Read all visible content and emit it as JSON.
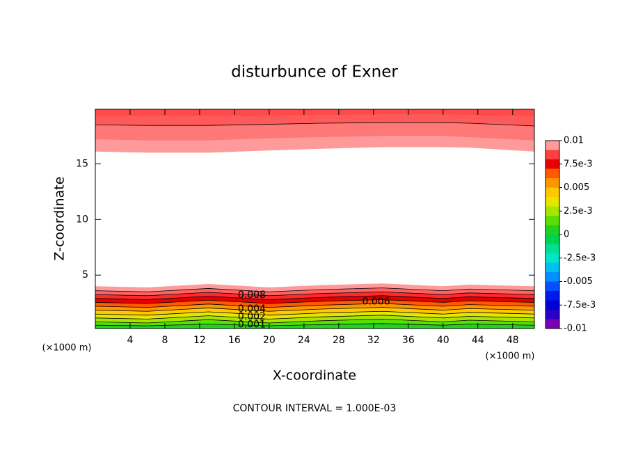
{
  "chart_data": {
    "type": "contour",
    "title": "disturbunce of Exner",
    "x_label": "X-coordinate",
    "y_label": "Z-coordinate",
    "x_unit_labels": [
      "(×1000 m)",
      "(×1000 m)"
    ],
    "footer": "CONTOUR INTERVAL = 1.000E-03",
    "xlim": [
      0,
      50.5
    ],
    "ylim": [
      0.2,
      19.9
    ],
    "xticks": [
      4,
      8,
      12,
      16,
      20,
      24,
      28,
      32,
      36,
      40,
      44,
      48
    ],
    "yticks": [
      5,
      10,
      15
    ],
    "x": [
      0,
      6,
      13,
      20,
      26,
      33,
      40,
      43,
      50.5
    ],
    "lower_bands": [
      {
        "color": "#ff9a9a",
        "line": false,
        "top": [
          4.0,
          3.9,
          4.2,
          3.9,
          4.1,
          4.25,
          4.0,
          4.15,
          4.0
        ]
      },
      {
        "color": "#ff6262",
        "line": true,
        "top": [
          3.6,
          3.5,
          3.8,
          3.5,
          3.7,
          3.85,
          3.6,
          3.75,
          3.6
        ]
      },
      {
        "color": "#ff2a2a",
        "line": true,
        "top": [
          3.25,
          3.15,
          3.45,
          3.15,
          3.35,
          3.5,
          3.25,
          3.4,
          3.25
        ]
      },
      {
        "color": "#e80000",
        "line": true,
        "top": [
          2.9,
          2.8,
          3.1,
          2.8,
          3.0,
          3.15,
          2.9,
          3.05,
          2.9
        ]
      },
      {
        "color": "#ff5a00",
        "line": true,
        "top": [
          2.55,
          2.45,
          2.75,
          2.45,
          2.65,
          2.8,
          2.55,
          2.7,
          2.55
        ]
      },
      {
        "color": "#ff9600",
        "line": true,
        "top": [
          2.2,
          2.1,
          2.4,
          2.1,
          2.3,
          2.45,
          2.2,
          2.35,
          2.2
        ]
      },
      {
        "color": "#ffc800",
        "line": true,
        "top": [
          1.85,
          1.75,
          2.05,
          1.75,
          1.95,
          2.1,
          1.85,
          2.0,
          1.85
        ]
      },
      {
        "color": "#e6e600",
        "line": true,
        "top": [
          1.5,
          1.4,
          1.7,
          1.4,
          1.6,
          1.75,
          1.5,
          1.65,
          1.5
        ]
      },
      {
        "color": "#a8e600",
        "line": true,
        "top": [
          1.15,
          1.05,
          1.35,
          1.05,
          1.25,
          1.4,
          1.15,
          1.3,
          1.15
        ]
      },
      {
        "color": "#5ae000",
        "line": true,
        "top": [
          0.8,
          0.7,
          1.0,
          0.7,
          0.9,
          1.05,
          0.8,
          0.95,
          0.8
        ]
      },
      {
        "color": "#22d222",
        "line": true,
        "top": [
          0.5,
          0.45,
          0.6,
          0.45,
          0.55,
          0.65,
          0.5,
          0.6,
          0.5
        ]
      }
    ],
    "upper_bands": [
      {
        "color": "#ff9a9a",
        "line": false,
        "bottom": [
          16.1,
          16.0,
          16.0,
          16.2,
          16.35,
          16.5,
          16.5,
          16.45,
          16.1
        ]
      },
      {
        "color": "#ff7878",
        "line": false,
        "bottom": [
          17.2,
          17.1,
          17.1,
          17.3,
          17.4,
          17.5,
          17.5,
          17.4,
          17.1
        ]
      },
      {
        "color": "#ff5a5a",
        "line": true,
        "bottom": [
          18.5,
          18.45,
          18.45,
          18.55,
          18.65,
          18.7,
          18.7,
          18.65,
          18.4
        ]
      },
      {
        "color": "#ff4a4a",
        "line": false,
        "bottom": [
          19.3,
          19.3,
          19.3,
          19.35,
          19.4,
          19.45,
          19.45,
          19.4,
          19.3
        ]
      }
    ],
    "contour_labels": [
      {
        "text": "0.008",
        "x": 18,
        "z": 3.2
      },
      {
        "text": "0.006",
        "x": 32.3,
        "z": 2.6
      },
      {
        "text": "0.004",
        "x": 18,
        "z": 1.95
      },
      {
        "text": "0.002",
        "x": 18,
        "z": 1.25
      },
      {
        "text": "0.001",
        "x": 18,
        "z": 0.55
      }
    ],
    "colorbar": {
      "lim": [
        -0.01,
        0.01
      ],
      "ticks": [
        {
          "value": 0.01,
          "label": "0.01"
        },
        {
          "value": 0.0075,
          "label": "7.5e-3"
        },
        {
          "value": 0.005,
          "label": "0.005"
        },
        {
          "value": 0.0025,
          "label": "2.5e-3"
        },
        0,
        {
          "value": -0.0025,
          "label": "-2.5e-3"
        },
        {
          "value": -0.005,
          "label": "-0.005"
        },
        {
          "value": -0.0075,
          "label": "-7.5e-3"
        },
        {
          "value": -0.01,
          "label": "-0.01"
        }
      ],
      "colors": [
        "#7a00b4",
        "#2a00c8",
        "#0000d8",
        "#0018f0",
        "#0050ff",
        "#0090ff",
        "#00c0f0",
        "#00e6c8",
        "#00e090",
        "#00d250",
        "#22d222",
        "#5ae000",
        "#a8e600",
        "#e6e600",
        "#ffc800",
        "#ff9600",
        "#ff5a00",
        "#e80000",
        "#ff4040",
        "#ff9a9a"
      ]
    }
  }
}
